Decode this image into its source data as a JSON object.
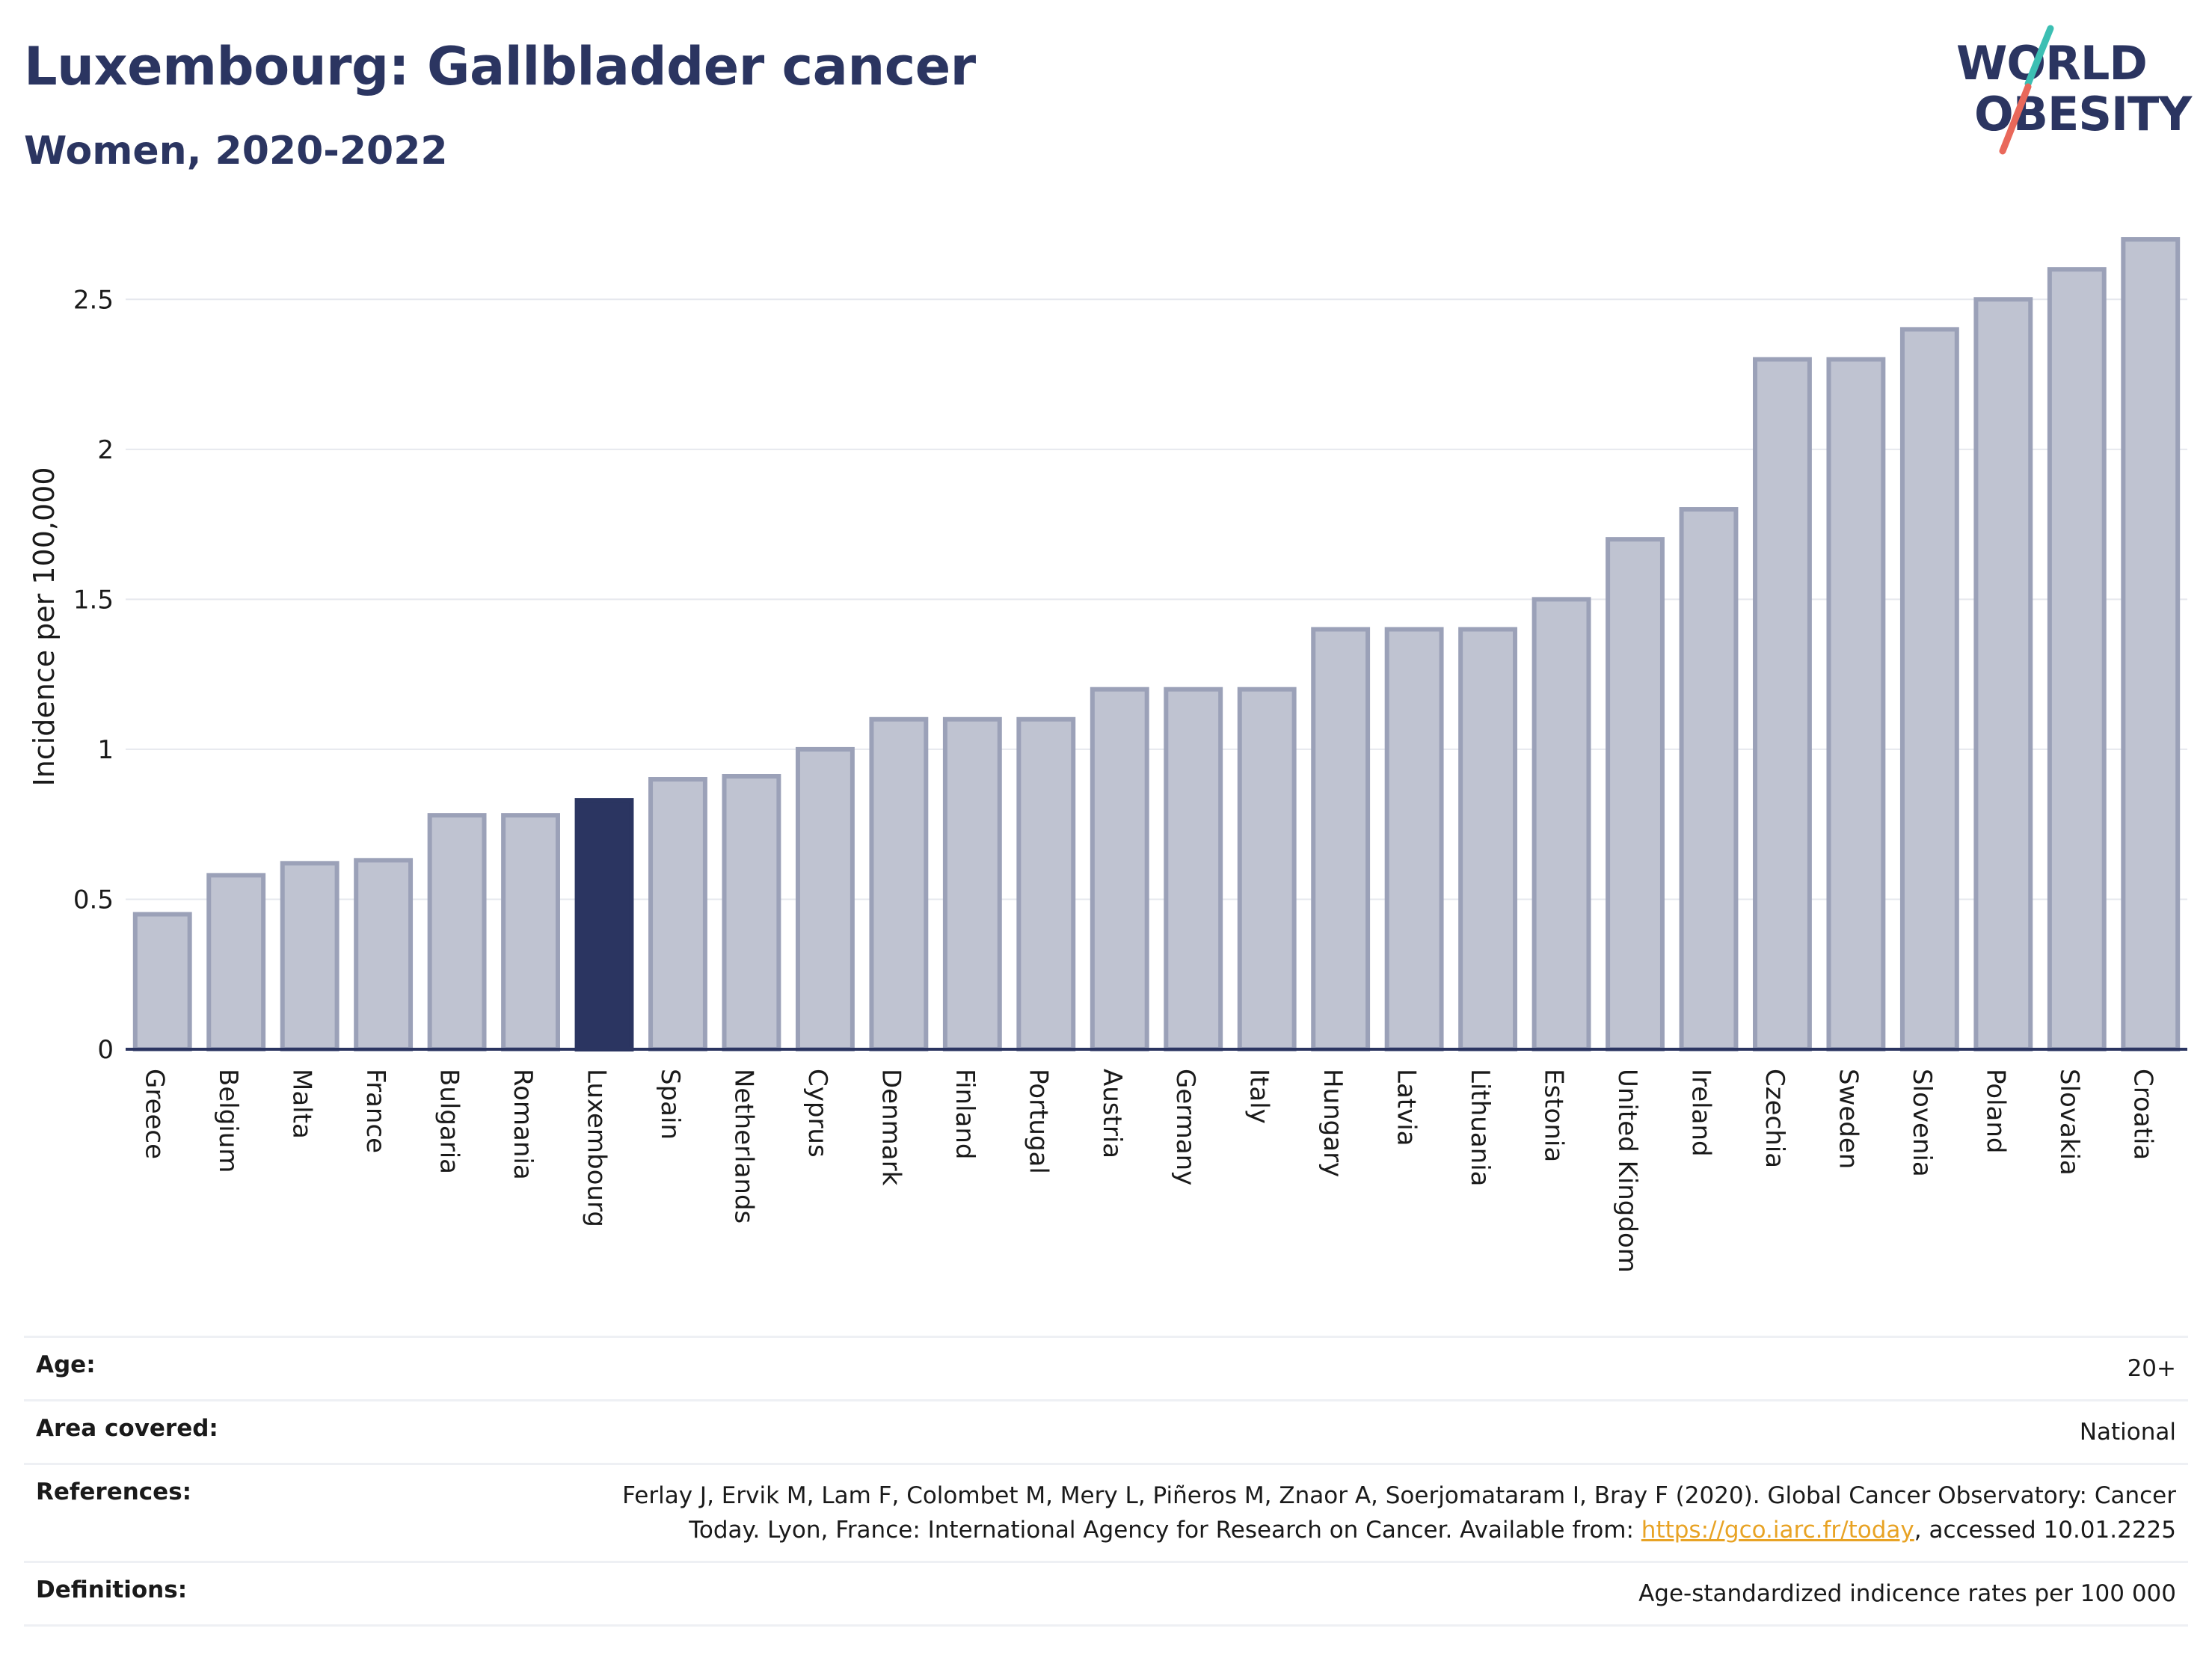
{
  "header": {
    "title": "Luxembourg: Gallbladder cancer",
    "subtitle": "Women, 2020-2022"
  },
  "logo": {
    "line1": "WORLD",
    "line2": "OBESITY",
    "accent_colors": [
      "#3cbfb3",
      "#e9685a"
    ]
  },
  "colors": {
    "bar": "#bfc3d1",
    "bar_border": "#9ba1b8",
    "highlight": "#2b3561",
    "grid": "#e6e8ee",
    "axis": "#2b3561"
  },
  "chart_data": {
    "type": "bar",
    "title": "",
    "xlabel": "",
    "ylabel": "Incidence per 100,000",
    "ylim": [
      0,
      2.75
    ],
    "yticks": [
      0,
      0.5,
      1,
      1.5,
      2,
      2.5
    ],
    "ytick_labels": [
      "0",
      "0.5",
      "1",
      "1.5",
      "2",
      "2.5"
    ],
    "highlight": "Luxembourg",
    "categories": [
      "Greece",
      "Belgium",
      "Malta",
      "France",
      "Bulgaria",
      "Romania",
      "Luxembourg",
      "Spain",
      "Netherlands",
      "Cyprus",
      "Denmark",
      "Finland",
      "Portugal",
      "Austria",
      "Germany",
      "Italy",
      "Hungary",
      "Latvia",
      "Lithuania",
      "Estonia",
      "United Kingdom",
      "Ireland",
      "Czechia",
      "Sweden",
      "Slovenia",
      "Poland",
      "Slovakia",
      "Croatia"
    ],
    "values": [
      0.45,
      0.58,
      0.62,
      0.63,
      0.78,
      0.78,
      0.83,
      0.9,
      0.91,
      1.0,
      1.1,
      1.1,
      1.1,
      1.2,
      1.2,
      1.2,
      1.4,
      1.4,
      1.4,
      1.5,
      1.7,
      1.8,
      2.3,
      2.3,
      2.4,
      2.5,
      2.6,
      2.7
    ],
    "grid": true,
    "legend": "none"
  },
  "meta": {
    "age_label": "Age:",
    "age_value": "20+",
    "area_label": "Area covered:",
    "area_value": "National",
    "references_label": "References:",
    "references_text_1": "Ferlay J, Ervik M, Lam F, Colombet M, Mery L, Piñeros M, Znaor A, Soerjomataram I, Bray F (2020). Global Cancer Observatory: Cancer",
    "references_text_2": "Today. Lyon, France: International Agency for Research on Cancer. Available from: ",
    "references_link": "https://gco.iarc.fr/today",
    "references_text_3": ", accessed 10.01.2225",
    "definitions_label": "Definitions:",
    "definitions_value": "Age-standardized indicence rates per 100 000"
  }
}
